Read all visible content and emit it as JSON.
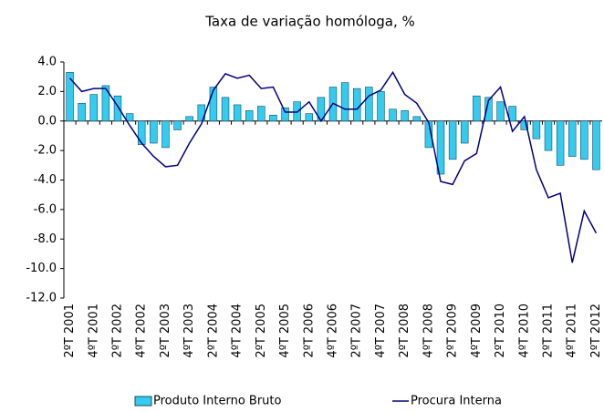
{
  "chart_data": {
    "type": "bar_line",
    "title": "Taxa de variação homóloga, %",
    "categories": [
      "2ºT 2001",
      null,
      "4ºT 2001",
      null,
      "2ºT 2002",
      null,
      "4ºT 2002",
      null,
      "2ºT 2003",
      null,
      "4ºT 2003",
      null,
      "2ºT 2004",
      null,
      "4ºT 2004",
      null,
      "2ºT 2005",
      null,
      "4ºT 2005",
      null,
      "2ºT 2006",
      null,
      "4ºT 2006",
      null,
      "2ºT 2007",
      null,
      "4ºT 2007",
      null,
      "2ºT 2008",
      null,
      "4ºT 2008",
      null,
      "2ºT 2009",
      null,
      "4ºT 2009",
      null,
      "2ºT 2010",
      null,
      "4ºT 2010",
      null,
      "2ºT 2011",
      null,
      "4ºT 2011",
      null,
      "2ºT 2012"
    ],
    "series": [
      {
        "name": "Produto Interno Bruto",
        "type": "bar",
        "color": "#33ccee",
        "values": [
          3.3,
          1.2,
          1.8,
          2.4,
          1.7,
          0.5,
          -1.6,
          -1.5,
          -1.8,
          -0.6,
          0.3,
          1.1,
          2.3,
          1.6,
          1.1,
          0.7,
          1.0,
          0.4,
          0.9,
          1.3,
          0.5,
          1.6,
          2.3,
          2.6,
          2.2,
          2.3,
          2.0,
          0.8,
          0.7,
          0.3,
          -1.8,
          -3.6,
          -2.6,
          -1.5,
          1.7,
          1.6,
          1.3,
          1.0,
          -0.6,
          -1.2,
          -2.0,
          -3.0,
          -2.4,
          -2.6,
          -3.3
        ]
      },
      {
        "name": "Procura Interna",
        "type": "line",
        "color": "#000080",
        "values": [
          2.9,
          2.0,
          2.2,
          2.2,
          1.0,
          -0.3,
          -1.5,
          -2.4,
          -3.1,
          -3.0,
          -1.5,
          -0.2,
          2.1,
          3.2,
          2.9,
          3.1,
          2.2,
          2.3,
          0.6,
          0.6,
          1.3,
          0.0,
          1.2,
          0.8,
          0.8,
          1.7,
          2.1,
          3.3,
          1.8,
          1.2,
          -0.1,
          -4.1,
          -4.3,
          -2.7,
          -2.2,
          1.4,
          2.3,
          -0.7,
          0.3,
          -3.3,
          -5.2,
          -4.9,
          -9.6,
          -6.1,
          -7.6
        ]
      }
    ],
    "ylim": [
      -12,
      4
    ],
    "yticks": [
      {
        "value": 4,
        "label": "4.0"
      },
      {
        "value": 2,
        "label": "2.0"
      },
      {
        "value": 0,
        "label": "0.0"
      },
      {
        "value": -2,
        "label": "-2.0"
      },
      {
        "value": -4,
        "label": "-4.0"
      },
      {
        "value": -6,
        "label": "-6.0"
      },
      {
        "value": -8,
        "label": "-8.0"
      },
      {
        "value": -10,
        "label": "-10.0"
      },
      {
        "value": -12,
        "label": "-12.0"
      }
    ],
    "legend": "bottom"
  }
}
